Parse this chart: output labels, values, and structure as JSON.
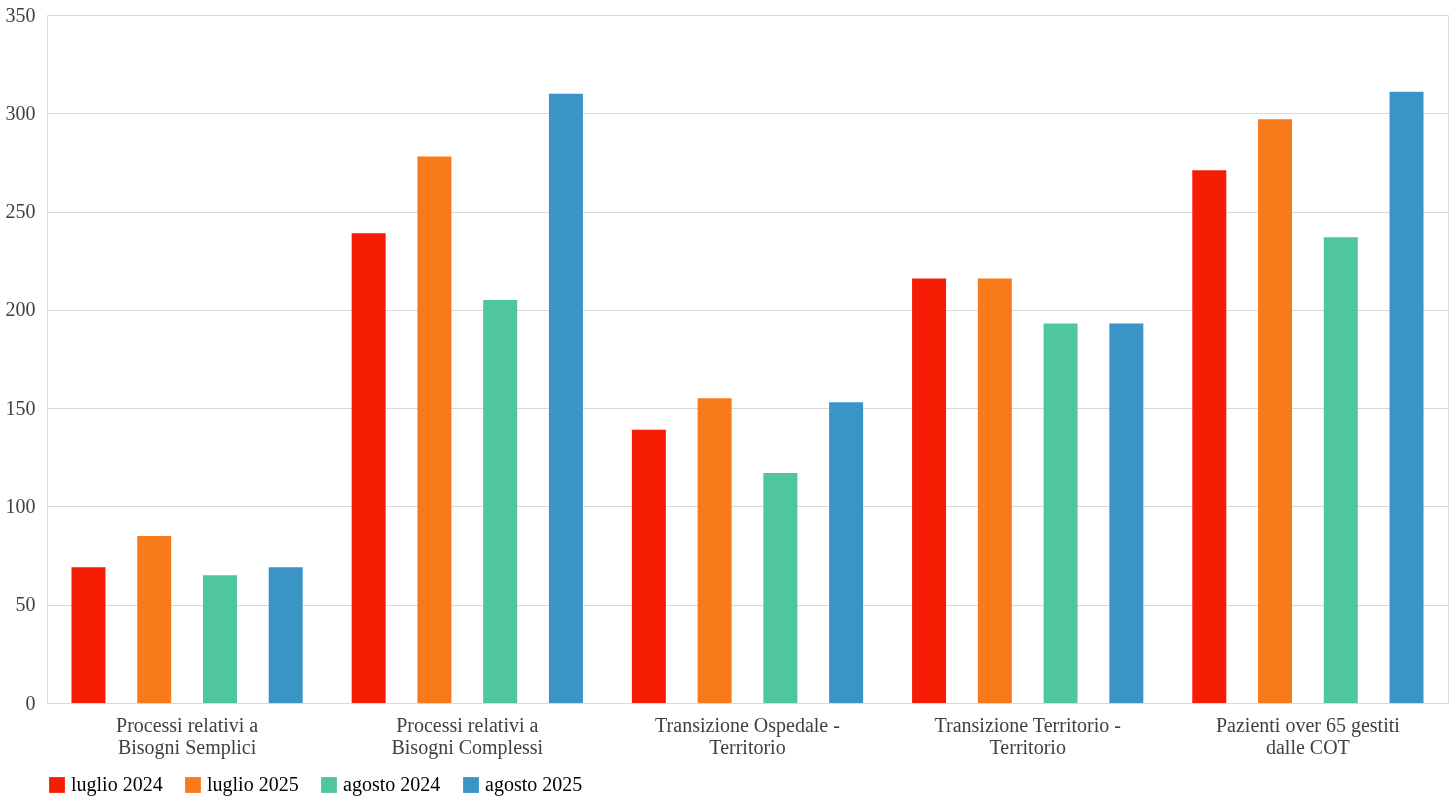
{
  "chart_data": {
    "type": "bar",
    "categories": [
      "Processi relativi a Bisogni Semplici",
      "Processi relativi a Bisogni Complessi",
      "Transizione Ospedale - Territorio",
      "Transizione Territorio - Territorio",
      "Pazienti over 65 gestiti dalle COT"
    ],
    "series": [
      {
        "name": "luglio 2024",
        "color": "#f51d04",
        "values": [
          69,
          239,
          139,
          216,
          271
        ]
      },
      {
        "name": "luglio 2025",
        "color": "#f97a1a",
        "values": [
          85,
          278,
          155,
          216,
          297
        ]
      },
      {
        "name": "agosto 2024",
        "color": "#4fc5a0",
        "values": [
          65,
          205,
          117,
          193,
          237
        ]
      },
      {
        "name": "agosto 2025",
        "color": "#3a95c6",
        "values": [
          69,
          310,
          153,
          193,
          311
        ]
      }
    ],
    "ylim": [
      0,
      350
    ],
    "yticks": [
      0,
      50,
      100,
      150,
      200,
      250,
      300,
      350
    ],
    "grid": "y",
    "legend": "bottom"
  }
}
